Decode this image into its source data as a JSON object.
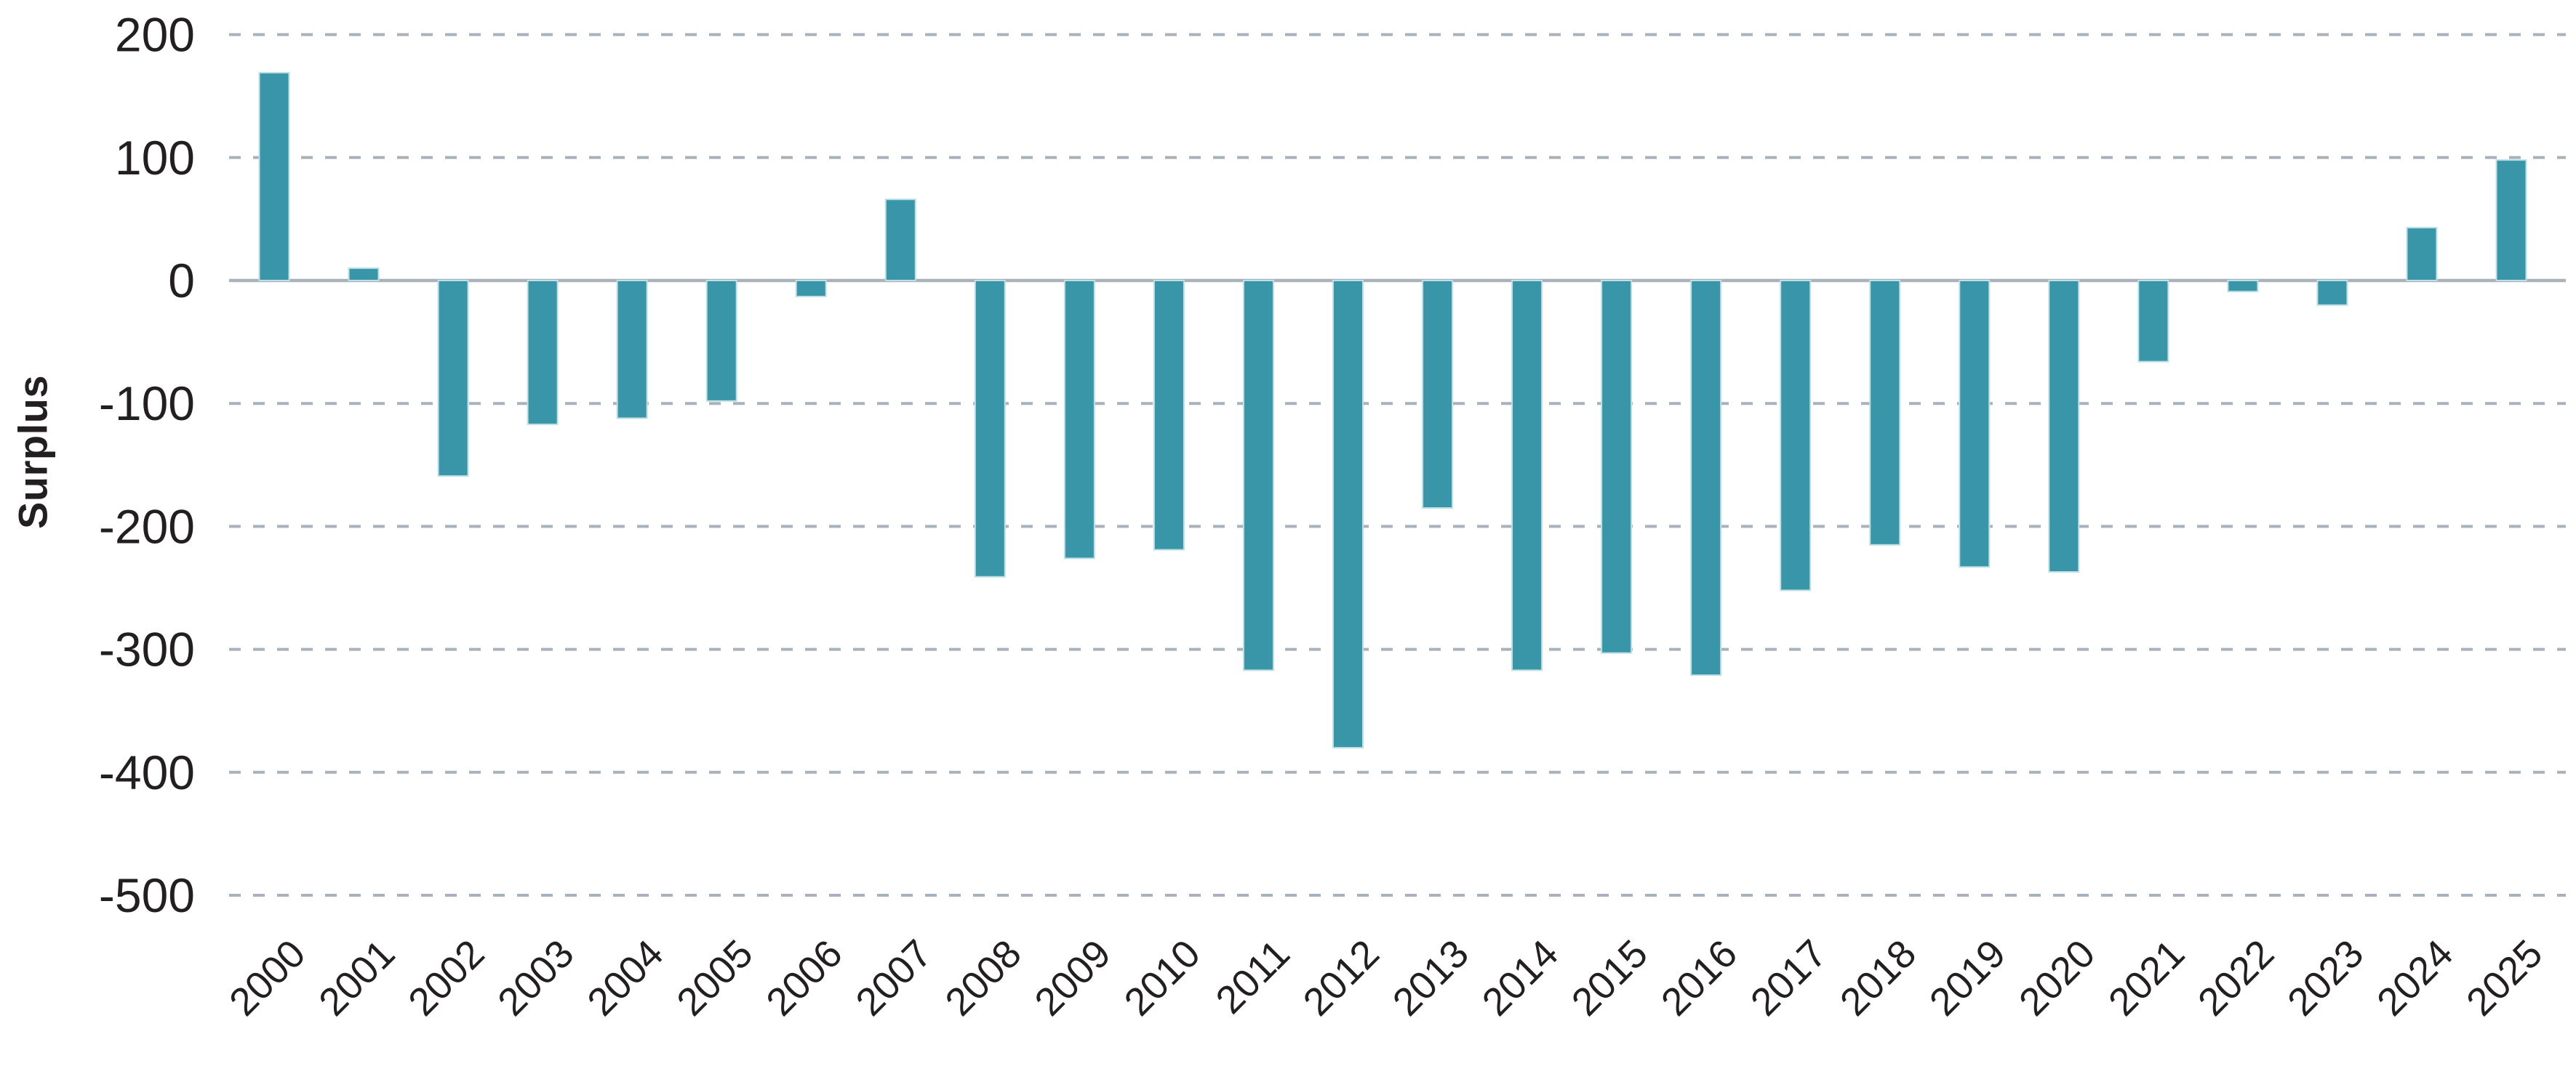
{
  "chart_data": {
    "type": "bar",
    "title": "",
    "xlabel": "",
    "ylabel": "Surplus",
    "categories": [
      "2000",
      "2001",
      "2002",
      "2003",
      "2004",
      "2005",
      "2006",
      "2007",
      "2008",
      "2009",
      "2010",
      "2011",
      "2012",
      "2013",
      "2014",
      "2015",
      "2016",
      "2017",
      "2018",
      "2019",
      "2020",
      "2021",
      "2022",
      "2023",
      "2024",
      "2025"
    ],
    "values": [
      169,
      10,
      -159,
      -117,
      -112,
      -98,
      -13,
      66,
      -241,
      -226,
      -219,
      -317,
      -380,
      -185,
      -317,
      -303,
      -321,
      -252,
      -215,
      -233,
      -237,
      -66,
      -9,
      -20,
      43,
      98
    ],
    "ylim": [
      -500,
      200
    ],
    "ytick_step": 100,
    "yticks": [
      200,
      100,
      0,
      -100,
      -200,
      -300,
      -400,
      -500
    ],
    "grid": "horizontal-dashed",
    "legend": "none",
    "colors": {
      "bar_fill": "#3896a8",
      "bar_edge": "#bedfe5",
      "grid_line": "#a9b2bb",
      "zero_line": "#a9b2bb",
      "text": "#231f20"
    }
  }
}
